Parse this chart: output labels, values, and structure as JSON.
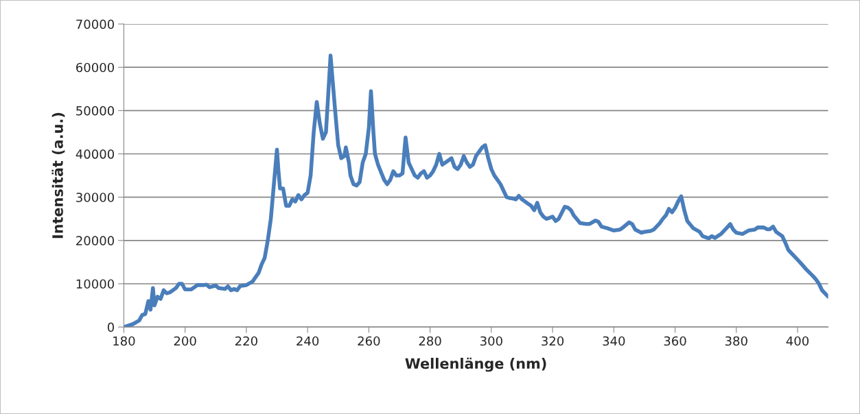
{
  "chart_data": {
    "type": "line",
    "xlabel": "Wellenlänge (nm)",
    "ylabel": "Intensität (a.u.)",
    "xlim": [
      180,
      410
    ],
    "xticks": [
      180,
      200,
      220,
      240,
      260,
      280,
      300,
      320,
      340,
      360,
      380,
      400
    ],
    "ylim": [
      0,
      70000
    ],
    "yticks": [
      0,
      10000,
      20000,
      30000,
      40000,
      50000,
      60000,
      70000
    ],
    "grid": "y",
    "marker": "none",
    "line_style": "solid",
    "series": [
      {
        "color": "#4a7ebb",
        "x": [
          180,
          183,
          185,
          186,
          187,
          188,
          188.7,
          189.5,
          190,
          191,
          192,
          193,
          194,
          195,
          196,
          197,
          198,
          199,
          200,
          202,
          204,
          206,
          207,
          208,
          210,
          211,
          213,
          214,
          215,
          216,
          217,
          218,
          220,
          222,
          224,
          225,
          226,
          227,
          228,
          229,
          230,
          230.5,
          231,
          232,
          233,
          234,
          235,
          236,
          237,
          238,
          239,
          240,
          241,
          242,
          243,
          244,
          245,
          246,
          247.5,
          249,
          250,
          251,
          252,
          252.5,
          253.5,
          254,
          255,
          256,
          257,
          258,
          259,
          260,
          260.7,
          261.5,
          262,
          263,
          265,
          266,
          267,
          268,
          269,
          270,
          271,
          272,
          273,
          275,
          276,
          277,
          278,
          279,
          280,
          281,
          282,
          283,
          284,
          286,
          287,
          288,
          289,
          290,
          291,
          292,
          293,
          294,
          295,
          296,
          297,
          298,
          299,
          300,
          301,
          302,
          303,
          304,
          305,
          306,
          307,
          308,
          309,
          310,
          312,
          313,
          314,
          315,
          316,
          317,
          318,
          320,
          321,
          322,
          324,
          325,
          326,
          327,
          329,
          331,
          332,
          334,
          335,
          336,
          338,
          340,
          342,
          343,
          345,
          346,
          347,
          349,
          350,
          352,
          353,
          355,
          356,
          357,
          358,
          359,
          360,
          361,
          362,
          363,
          364,
          366,
          368,
          369,
          371,
          372,
          373,
          375,
          377,
          378,
          379,
          380,
          382,
          384,
          386,
          387,
          389,
          390,
          391,
          392,
          393,
          395,
          396,
          397,
          399,
          401,
          403,
          405,
          406,
          407,
          408,
          410
        ],
        "values": [
          0,
          700,
          1500,
          2800,
          3000,
          6000,
          4000,
          9000,
          5000,
          7000,
          6500,
          8500,
          7800,
          8000,
          8500,
          9000,
          10000,
          10000,
          8700,
          8700,
          9700,
          9700,
          9800,
          9200,
          9600,
          9000,
          8800,
          9400,
          8500,
          8800,
          8500,
          9500,
          9700,
          10500,
          12500,
          14500,
          16000,
          20000,
          25000,
          33000,
          41000,
          36000,
          32000,
          32000,
          28000,
          28000,
          29500,
          29000,
          30500,
          29500,
          30500,
          31000,
          35000,
          45000,
          52000,
          47000,
          43500,
          45000,
          62700,
          50000,
          42000,
          39000,
          39500,
          41500,
          38000,
          35000,
          33000,
          32700,
          33500,
          38000,
          40000,
          46000,
          54500,
          45000,
          40000,
          37500,
          34000,
          33000,
          34000,
          36000,
          35000,
          35000,
          35500,
          43800,
          38000,
          35000,
          34500,
          35500,
          36000,
          34500,
          35000,
          36000,
          37500,
          40000,
          37500,
          38500,
          39000,
          37000,
          36500,
          37500,
          39500,
          38000,
          37000,
          37500,
          39500,
          40500,
          41500,
          42000,
          39000,
          36500,
          35000,
          34000,
          33000,
          31500,
          30000,
          29800,
          29700,
          29500,
          30300,
          29500,
          28500,
          28000,
          27000,
          28700,
          26500,
          25500,
          25000,
          25500,
          24500,
          25000,
          27800,
          27600,
          27000,
          25700,
          24000,
          23800,
          23800,
          24600,
          24300,
          23200,
          22800,
          22300,
          22500,
          23000,
          24200,
          23800,
          22500,
          21800,
          22000,
          22200,
          22500,
          24000,
          25000,
          25800,
          27300,
          26500,
          27500,
          29000,
          30200,
          27000,
          24500,
          22800,
          22000,
          21000,
          20500,
          21000,
          20600,
          21500,
          23000,
          23800,
          22500,
          21800,
          21500,
          22300,
          22500,
          23000,
          23000,
          22600,
          22600,
          23200,
          22000,
          21000,
          19500,
          17800,
          16300,
          14800,
          13200,
          11800,
          11000,
          10000,
          8500,
          7000
        ]
      }
    ]
  }
}
